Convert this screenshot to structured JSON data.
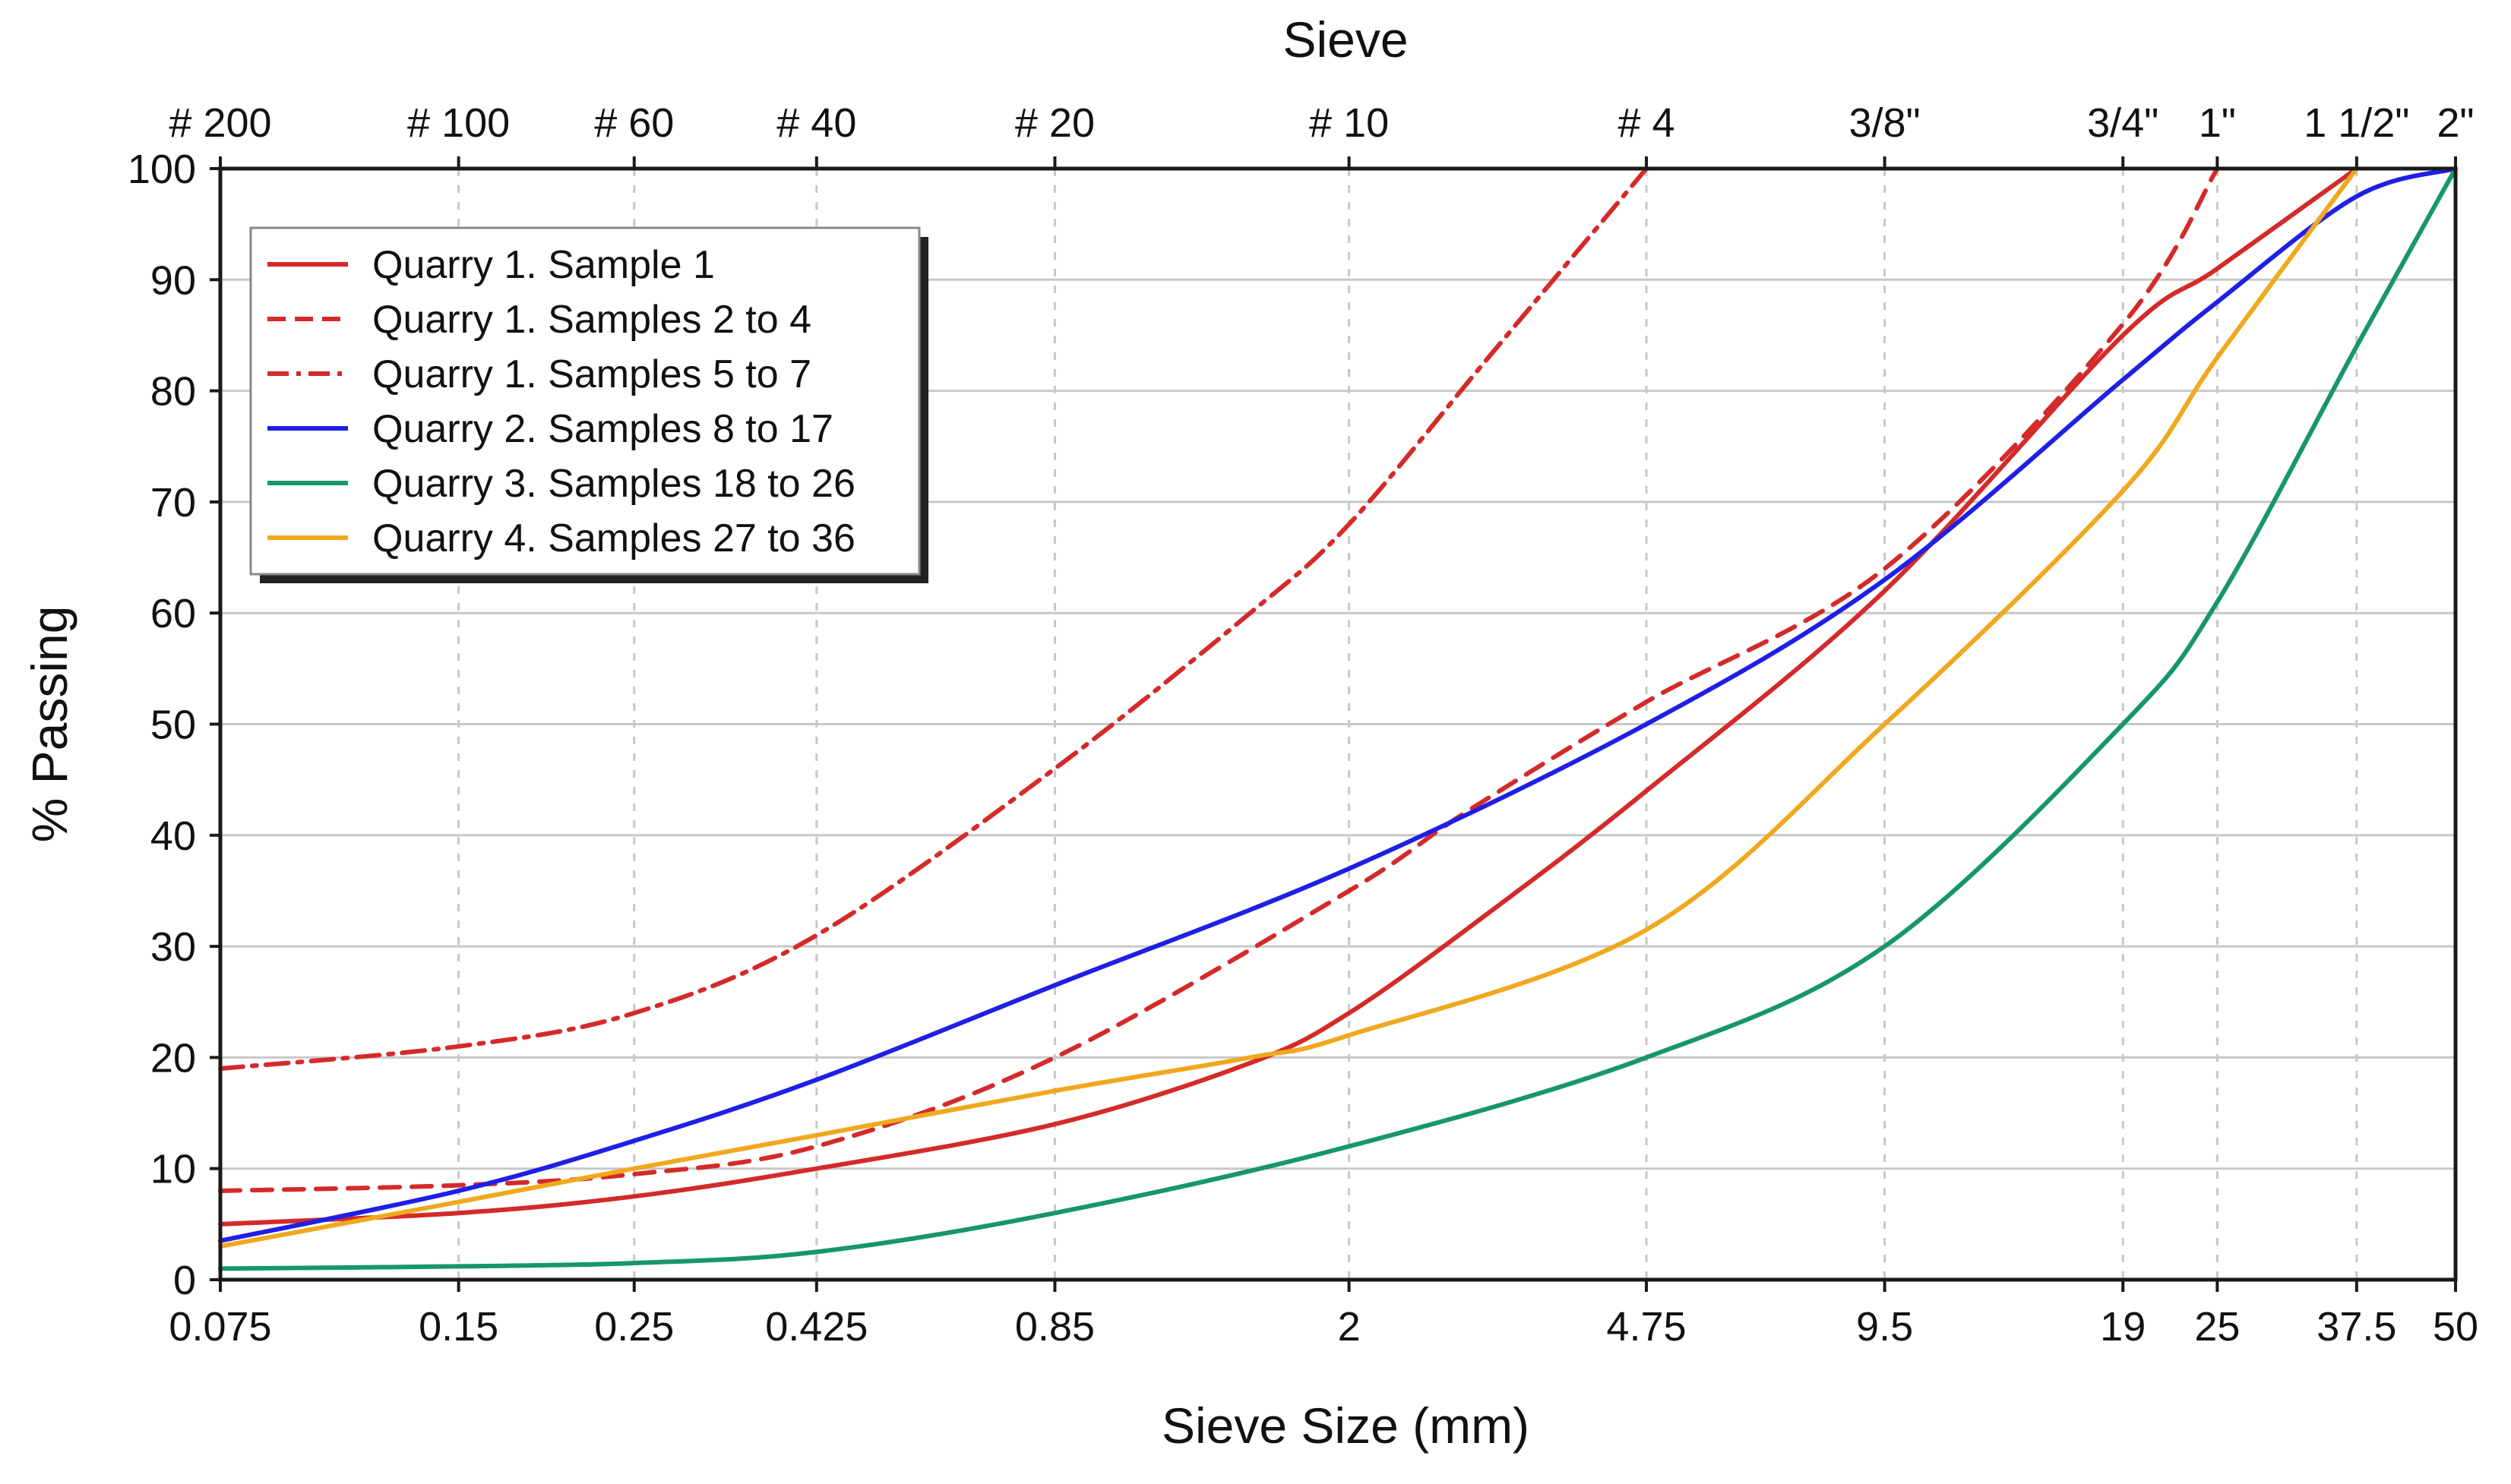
{
  "chart_data": {
    "type": "line",
    "title": "",
    "xlabel": "Sieve Size (mm)",
    "ylabel": "% Passing",
    "top_axis_title": "Sieve",
    "x_scale": "log",
    "xlim": [
      0.075,
      50
    ],
    "ylim": [
      0,
      100
    ],
    "y_ticks": [
      0,
      10,
      20,
      30,
      40,
      50,
      60,
      70,
      80,
      90,
      100
    ],
    "y_tick_labels": [
      "0",
      "10",
      "20",
      "30",
      "40",
      "50",
      "60",
      "70",
      "80",
      "90",
      "100"
    ],
    "x_ticks": [
      0.075,
      0.15,
      0.25,
      0.425,
      0.85,
      2,
      4.75,
      9.5,
      19,
      25,
      37.5,
      50
    ],
    "x_tick_labels": [
      "0.075",
      "0.15",
      "0.25",
      "0.425",
      "0.85",
      "2",
      "4.75",
      "9.5",
      "19",
      "25",
      "37.5",
      "50"
    ],
    "top_ticks": [
      0.075,
      0.15,
      0.25,
      0.425,
      0.85,
      2,
      4.75,
      9.5,
      19,
      25,
      37.5,
      50
    ],
    "top_tick_labels": [
      "# 200",
      "# 100",
      "# 60",
      "# 40",
      "# 20",
      "# 10",
      "# 4",
      "3/8\"",
      "3/4\"",
      "1\"",
      "1 1/2\"",
      "2\""
    ],
    "grid": true,
    "legend_position": "top-left",
    "series": [
      {
        "name": "Quarry 1. Sample 1",
        "color": "#d42a2a",
        "style": "solid",
        "x": [
          0.075,
          0.15,
          0.25,
          0.425,
          0.85,
          1.5,
          2,
          3,
          4.75,
          9.5,
          19,
          25,
          37.5
        ],
        "values": [
          5,
          6,
          7.5,
          10,
          14,
          19.5,
          24,
          33,
          44,
          62,
          85,
          91,
          100
        ]
      },
      {
        "name": "Quarry 1. Samples 2 to 4",
        "color": "#d42a2a",
        "style": "dashed",
        "x": [
          0.075,
          0.15,
          0.25,
          0.425,
          0.85,
          2,
          2.8,
          4.75,
          9.5,
          19,
          25
        ],
        "values": [
          8,
          8.5,
          9.5,
          12,
          20,
          35,
          42,
          52,
          64,
          86,
          100
        ]
      },
      {
        "name": "Quarry 1. Samples 5 to 7",
        "color": "#d42a2a",
        "style": "dashdot",
        "x": [
          0.075,
          0.15,
          0.25,
          0.425,
          0.85,
          1.5,
          2,
          3,
          4.75
        ],
        "values": [
          19,
          21,
          24,
          31,
          46,
          60,
          68,
          83,
          100
        ]
      },
      {
        "name": "Quarry 2. Samples 8 to 17",
        "color": "#1f1fe6",
        "style": "solid",
        "x": [
          0.075,
          0.15,
          0.25,
          0.425,
          0.85,
          2,
          4.75,
          9.5,
          19,
          25,
          37.5,
          50
        ],
        "values": [
          3.5,
          8,
          12.5,
          18,
          26.5,
          37,
          50,
          63,
          81,
          88,
          97.5,
          100
        ]
      },
      {
        "name": "Quarry 3. Samples 18 to 26",
        "color": "#17966c",
        "style": "solid",
        "x": [
          0.075,
          0.15,
          0.25,
          0.425,
          0.85,
          2,
          4.75,
          9.5,
          19,
          25,
          37.5,
          50
        ],
        "values": [
          1,
          1.2,
          1.5,
          2.5,
          6,
          12,
          20,
          30,
          50,
          61,
          84,
          100
        ]
      },
      {
        "name": "Quarry 4. Samples 27 to 36",
        "color": "#f0a81e",
        "style": "solid",
        "x": [
          0.075,
          0.15,
          0.25,
          0.425,
          0.85,
          1.5,
          2,
          4.75,
          9.5,
          19,
          25,
          37.5
        ],
        "values": [
          3,
          7,
          10,
          13,
          17,
          20,
          22,
          31.5,
          50,
          71,
          83,
          100
        ]
      }
    ]
  }
}
